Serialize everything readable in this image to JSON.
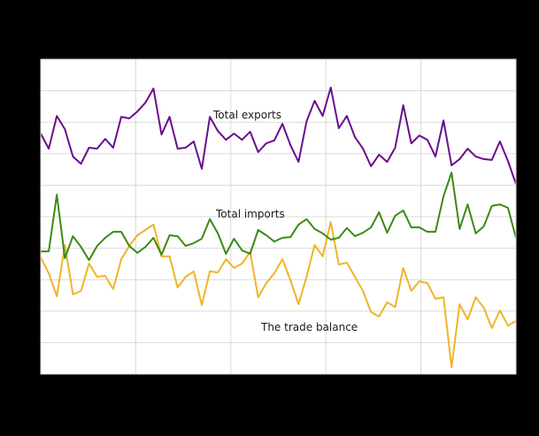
{
  "chart_data": {
    "type": "line",
    "title": "",
    "xlabel": "",
    "ylabel": "",
    "grid": true,
    "legend_position": "inline-labels",
    "x_count": 60,
    "x_gridline_every": 12,
    "ylim": [
      0,
      10
    ],
    "y_gridline_count": 10,
    "colors": {
      "background": "#000000",
      "plot_background": "#ffffff",
      "gridline": "#d9d9d9",
      "exports": "#6a0d8e",
      "imports": "#3d8a12",
      "balance": "#f0b429"
    },
    "annotations": [
      {
        "text": "Total exports",
        "series": "Total exports"
      },
      {
        "text": "Total imports",
        "series": "Total imports"
      },
      {
        "text": "The trade balance",
        "series": "The trade balance"
      }
    ],
    "series": [
      {
        "name": "Total exports",
        "color": "#6a0d8e",
        "values": [
          7.64,
          7.16,
          8.2,
          7.78,
          6.91,
          6.68,
          7.19,
          7.16,
          7.47,
          7.19,
          8.17,
          8.12,
          8.34,
          8.62,
          9.07,
          7.61,
          8.17,
          7.16,
          7.19,
          7.39,
          6.52,
          8.17,
          7.72,
          7.44,
          7.64,
          7.44,
          7.7,
          7.05,
          7.33,
          7.42,
          7.95,
          7.27,
          6.74,
          8.03,
          8.68,
          8.2,
          9.1,
          7.81,
          8.2,
          7.53,
          7.16,
          6.6,
          6.97,
          6.74,
          7.19,
          8.54,
          7.33,
          7.58,
          7.44,
          6.91,
          8.06,
          6.63,
          6.83,
          7.16,
          6.91,
          6.83,
          6.8,
          7.39,
          6.77,
          6.04
        ]
      },
      {
        "name": "Total imports",
        "color": "#3d8a12",
        "values": [
          3.9,
          3.9,
          5.7,
          3.68,
          4.38,
          4.04,
          3.62,
          4.07,
          4.33,
          4.52,
          4.52,
          4.07,
          3.85,
          4.04,
          4.33,
          3.79,
          4.41,
          4.38,
          4.07,
          4.16,
          4.3,
          4.92,
          4.47,
          3.82,
          4.3,
          3.93,
          3.82,
          4.58,
          4.41,
          4.21,
          4.33,
          4.35,
          4.75,
          4.92,
          4.61,
          4.47,
          4.27,
          4.33,
          4.64,
          4.38,
          4.49,
          4.66,
          5.14,
          4.49,
          5.03,
          5.2,
          4.66,
          4.66,
          4.52,
          4.52,
          5.65,
          6.4,
          4.61,
          5.39,
          4.47,
          4.69,
          5.34,
          5.39,
          5.28,
          4.33
        ]
      },
      {
        "name": "The trade balance",
        "color": "#f0b429",
        "values": [
          3.71,
          3.2,
          2.47,
          4.1,
          2.53,
          2.64,
          3.51,
          3.09,
          3.12,
          2.7,
          3.65,
          4.07,
          4.41,
          4.58,
          4.75,
          3.74,
          3.74,
          2.75,
          3.09,
          3.26,
          2.19,
          3.26,
          3.23,
          3.65,
          3.37,
          3.51,
          3.88,
          2.44,
          2.89,
          3.2,
          3.65,
          2.98,
          2.22,
          3.09,
          4.1,
          3.74,
          4.83,
          3.48,
          3.54,
          3.09,
          2.64,
          1.97,
          1.83,
          2.28,
          2.13,
          3.37,
          2.64,
          2.95,
          2.89,
          2.39,
          2.44,
          0.22,
          2.22,
          1.74,
          2.44,
          2.11,
          1.46,
          2.02,
          1.54,
          1.69
        ]
      }
    ]
  }
}
